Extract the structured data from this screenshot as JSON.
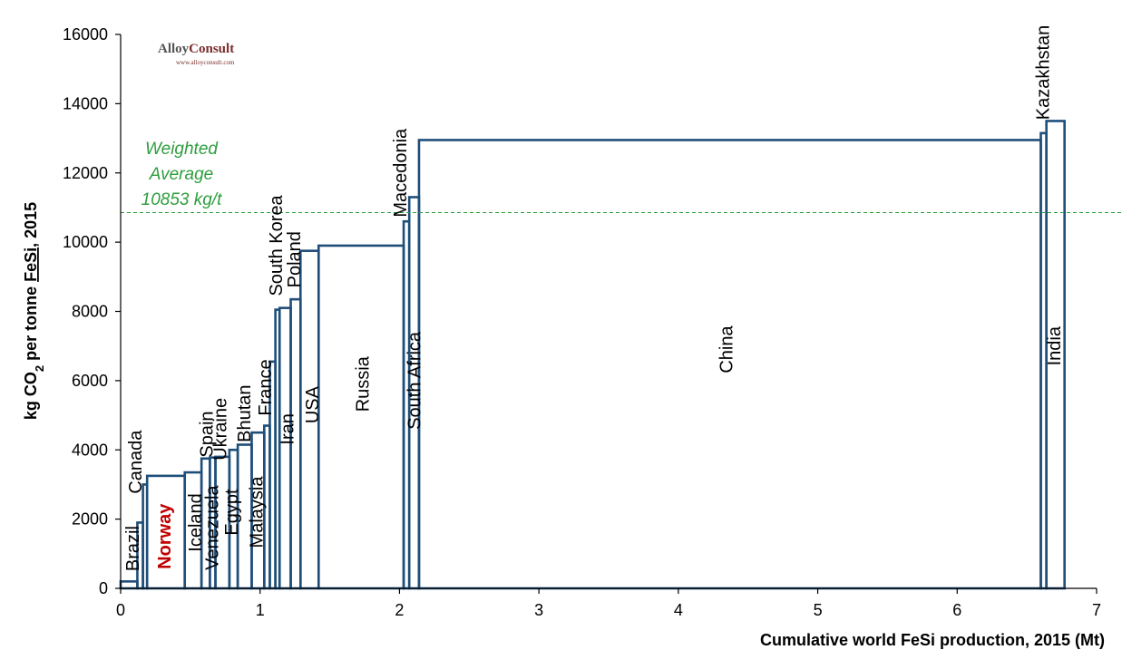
{
  "chart_data": {
    "type": "bar",
    "subtype": "variable-width step (cost curve)",
    "xlabel": "Cumulative world FeSi production, 2015 (Mt)",
    "ylabel_parts": [
      "kg CO",
      "2",
      " per tonne ",
      "FeSi",
      ", 2015"
    ],
    "xlim": [
      0,
      7
    ],
    "ylim": [
      0,
      16000
    ],
    "xticks": [
      0,
      1,
      2,
      3,
      4,
      5,
      6,
      7
    ],
    "yticks": [
      0,
      2000,
      4000,
      6000,
      8000,
      10000,
      12000,
      14000,
      16000
    ],
    "grid": false,
    "series_color": "#1f4e79",
    "highlight_color": "#c00000",
    "average": {
      "value": 10853,
      "label_lines": [
        "Weighted",
        "Average",
        "10853 kg/t"
      ],
      "color": "#2e9e3e"
    },
    "bars": [
      {
        "name": "Brazil",
        "x0": 0.0,
        "x1": 0.12,
        "value": 200,
        "label": "Brazil"
      },
      {
        "name": "Brazil-2",
        "x0": 0.12,
        "x1": 0.16,
        "value": 1900,
        "label": ""
      },
      {
        "name": "Canada",
        "x0": 0.16,
        "x1": 0.19,
        "value": 3000,
        "label": "Canada"
      },
      {
        "name": "Norway",
        "x0": 0.19,
        "x1": 0.46,
        "value": 3250,
        "label": "Norway",
        "highlight": true
      },
      {
        "name": "Iceland",
        "x0": 0.46,
        "x1": 0.58,
        "value": 3350,
        "label": "Iceland"
      },
      {
        "name": "Spain",
        "x0": 0.58,
        "x1": 0.64,
        "value": 3750,
        "label": "Spain"
      },
      {
        "name": "Venezuela",
        "x0": 0.64,
        "x1": 0.68,
        "value": 3780,
        "label": "Venezuela"
      },
      {
        "name": "Ukraine",
        "x0": 0.68,
        "x1": 0.78,
        "value": 3800,
        "label": "Ukraine"
      },
      {
        "name": "Egypt",
        "x0": 0.78,
        "x1": 0.84,
        "value": 4000,
        "label": "Egypt"
      },
      {
        "name": "Bhutan",
        "x0": 0.84,
        "x1": 0.94,
        "value": 4150,
        "label": "Bhutan"
      },
      {
        "name": "Malaysia",
        "x0": 0.94,
        "x1": 1.03,
        "value": 4500,
        "label": "Malaysia"
      },
      {
        "name": "France",
        "x0": 1.03,
        "x1": 1.07,
        "value": 4700,
        "label": "France"
      },
      {
        "name": "France-2",
        "x0": 1.07,
        "x1": 1.11,
        "value": 6550,
        "label": ""
      },
      {
        "name": "Iran",
        "x0": 1.11,
        "x1": 1.14,
        "value": 8050,
        "label": "Iran"
      },
      {
        "name": "South Korea",
        "x0": 1.14,
        "x1": 1.22,
        "value": 8100,
        "label": "South Korea"
      },
      {
        "name": "Poland",
        "x0": 1.22,
        "x1": 1.29,
        "value": 8350,
        "label": "Poland"
      },
      {
        "name": "USA",
        "x0": 1.29,
        "x1": 1.42,
        "value": 9750,
        "label": "USA"
      },
      {
        "name": "Russia",
        "x0": 1.42,
        "x1": 2.03,
        "value": 9900,
        "label": "Russia"
      },
      {
        "name": "Macedonia",
        "x0": 2.03,
        "x1": 2.07,
        "value": 10600,
        "label": "Macedonia"
      },
      {
        "name": "South Africa",
        "x0": 2.07,
        "x1": 2.14,
        "value": 11300,
        "label": "South Africa"
      },
      {
        "name": "China",
        "x0": 2.14,
        "x1": 6.6,
        "value": 12950,
        "label": "China"
      },
      {
        "name": "Kazakhstan",
        "x0": 6.6,
        "x1": 6.64,
        "value": 13150,
        "label": "Kazakhstan"
      },
      {
        "name": "India",
        "x0": 6.64,
        "x1": 6.77,
        "value": 13500,
        "label": "India"
      }
    ],
    "labels": [
      {
        "text": "Brazil",
        "x": 0.09,
        "y": 1150,
        "rotate": true
      },
      {
        "text": "Canada",
        "x": 0.11,
        "y": 3650,
        "rotate": true
      },
      {
        "text": "Norway",
        "x": 0.32,
        "y": 1500,
        "rotate": true,
        "highlight": true
      },
      {
        "text": "Iceland",
        "x": 0.54,
        "y": 1900,
        "rotate": true
      },
      {
        "text": "Venezuela",
        "x": 0.66,
        "y": 1750,
        "rotate": true
      },
      {
        "text": "Spain",
        "x": 0.62,
        "y": 4450,
        "rotate": true
      },
      {
        "text": "Ukraine",
        "x": 0.72,
        "y": 4600,
        "rotate": true
      },
      {
        "text": "Egypt",
        "x": 0.8,
        "y": 2200,
        "rotate": true
      },
      {
        "text": "Bhutan",
        "x": 0.89,
        "y": 5050,
        "rotate": true
      },
      {
        "text": "Malaysia",
        "x": 0.98,
        "y": 2200,
        "rotate": true
      },
      {
        "text": "France",
        "x": 1.04,
        "y": 5800,
        "rotate": true
      },
      {
        "text": "Iran",
        "x": 1.2,
        "y": 4600,
        "rotate": true
      },
      {
        "text": "South Korea",
        "x": 1.12,
        "y": 9900,
        "rotate": true
      },
      {
        "text": "Poland",
        "x": 1.25,
        "y": 9500,
        "rotate": true
      },
      {
        "text": "USA",
        "x": 1.38,
        "y": 5300,
        "rotate": true
      },
      {
        "text": "Russia",
        "x": 1.74,
        "y": 5900,
        "rotate": true
      },
      {
        "text": "Macedonia",
        "x": 2.01,
        "y": 12000,
        "rotate": true
      },
      {
        "text": "South Africa",
        "x": 2.11,
        "y": 6000,
        "rotate": true
      },
      {
        "text": "China",
        "x": 4.35,
        "y": 6900,
        "rotate": true
      },
      {
        "text": "Kazakhstan",
        "x": 6.62,
        "y": 14900,
        "rotate": true
      },
      {
        "text": "India",
        "x": 6.7,
        "y": 7000,
        "rotate": true
      }
    ]
  },
  "logo": {
    "text_a": "Alloy",
    "text_b": "Consult",
    "url": "www.alloyconsult.com",
    "color_a": "#555555",
    "color_b": "#7b2d2d"
  }
}
